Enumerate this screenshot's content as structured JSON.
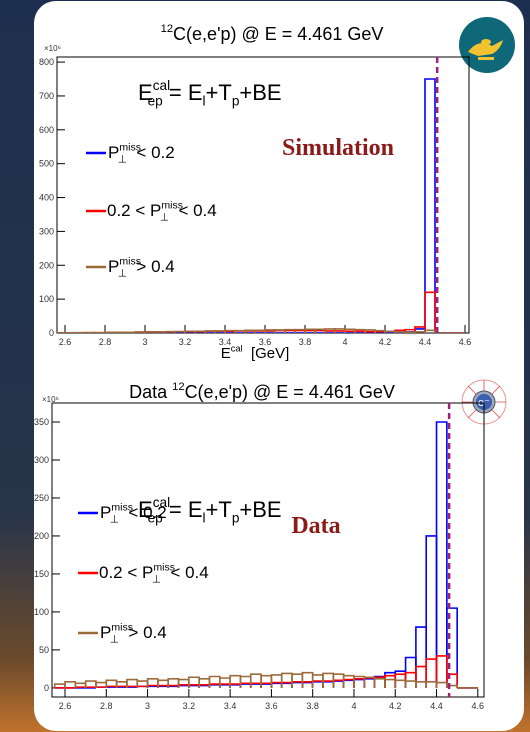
{
  "chart_data": [
    {
      "type": "histogram",
      "title": {
        "sup": "12",
        "base": "C(e,e'p) @ E = 4.461 GeV"
      },
      "y_multiplier": "×10⁶",
      "formula": {
        "base": "E",
        "sup": "cal",
        "sub": "ep",
        "post": " = E",
        "sub2": "l",
        "post2": "+T",
        "sub3": "p",
        "post3": "+BE"
      },
      "annotation": "Simulation",
      "xlabel": {
        "base": "E",
        "sup": "cal",
        "post": "  [GeV]"
      },
      "vline": 4.461,
      "xlim": [
        2.56,
        4.62
      ],
      "ylim": [
        0,
        815
      ],
      "xticks": [
        2.6,
        2.8,
        3,
        3.2,
        3.4,
        3.6,
        3.8,
        4,
        4.2,
        4.4,
        4.6
      ],
      "yticks": [
        0,
        100,
        200,
        300,
        400,
        500,
        600,
        700,
        800
      ],
      "bins": [
        2.55,
        2.6,
        2.65,
        2.7,
        2.75,
        2.8,
        2.85,
        2.9,
        2.95,
        3.0,
        3.05,
        3.1,
        3.15,
        3.2,
        3.25,
        3.3,
        3.35,
        3.4,
        3.45,
        3.5,
        3.55,
        3.6,
        3.65,
        3.7,
        3.75,
        3.8,
        3.85,
        3.9,
        3.95,
        4.0,
        4.05,
        4.1,
        4.15,
        4.2,
        4.25,
        4.3,
        4.35,
        4.4,
        4.45,
        4.5,
        4.55,
        4.6
      ],
      "series": [
        {
          "label": {
            "base": "P",
            "sup": "miss",
            "sub": "⊥",
            "post": "  < 0.2"
          },
          "color": "#0000ff",
          "values": [
            0,
            0,
            0,
            0,
            0,
            0,
            0,
            0,
            0,
            0,
            0,
            0,
            0,
            0,
            0,
            0,
            0,
            0,
            0,
            0,
            0,
            0,
            0,
            0,
            0,
            0,
            0,
            0,
            0,
            0,
            0,
            0,
            0,
            0,
            0,
            3,
            12,
            750,
            0,
            0,
            0
          ]
        },
        {
          "label": {
            "pre": "0.2 < ",
            "base": "P",
            "sup": "miss",
            "sub": "⊥",
            "post": "  < 0.4"
          },
          "color": "#ff0000",
          "values": [
            0,
            0,
            0,
            1,
            1,
            1,
            2,
            2,
            2,
            3,
            3,
            3,
            4,
            4,
            4,
            5,
            5,
            5,
            6,
            6,
            6,
            6,
            7,
            7,
            7,
            7,
            7,
            6,
            6,
            5,
            5,
            4,
            4,
            5,
            8,
            10,
            18,
            120,
            0,
            0,
            0
          ]
        },
        {
          "label": {
            "base": "P",
            "sup": "miss",
            "sub": "⊥",
            "post": "  > 0.4"
          },
          "color": "#9c6b3c",
          "values": [
            0,
            0,
            1,
            1,
            1,
            2,
            2,
            2,
            3,
            3,
            3,
            4,
            4,
            5,
            5,
            6,
            6,
            7,
            7,
            8,
            8,
            9,
            9,
            10,
            10,
            11,
            11,
            12,
            12,
            11,
            10,
            9,
            7,
            5,
            3,
            2,
            3,
            8,
            0,
            0,
            0
          ]
        }
      ]
    },
    {
      "type": "histogram",
      "title": {
        "pre": "Data ",
        "sup": "12",
        "base": "C(e,e'p) @ E = 4.461 GeV"
      },
      "y_multiplier": "×10⁶",
      "formula": {
        "base": "E",
        "sup": "cal",
        "sub": "ep",
        "post": " = E",
        "sub2": "l",
        "post2": "+T",
        "sub3": "p",
        "post3": "+BE"
      },
      "annotation": "Data",
      "vline": 4.461,
      "xlim": [
        2.537,
        4.63
      ],
      "ylim": [
        -12,
        375
      ],
      "xticks": [
        2.6,
        2.8,
        3,
        3.2,
        3.4,
        3.6,
        3.8,
        4,
        4.2,
        4.4,
        4.6
      ],
      "yticks": [
        0,
        50,
        100,
        150,
        200,
        250,
        300,
        350
      ],
      "bins": [
        2.55,
        2.6,
        2.65,
        2.7,
        2.75,
        2.8,
        2.85,
        2.9,
        2.95,
        3.0,
        3.05,
        3.1,
        3.15,
        3.2,
        3.25,
        3.3,
        3.35,
        3.4,
        3.45,
        3.5,
        3.55,
        3.6,
        3.65,
        3.7,
        3.75,
        3.8,
        3.85,
        3.9,
        3.95,
        4.0,
        4.05,
        4.1,
        4.15,
        4.2,
        4.25,
        4.3,
        4.35,
        4.4,
        4.45,
        4.5,
        4.55,
        4.6
      ],
      "series": [
        {
          "label": {
            "base": "P",
            "sup": "miss",
            "sub": "⊥",
            "post": "  < 0.2"
          },
          "color": "#0000ff",
          "values": [
            0,
            0,
            0,
            0,
            1,
            1,
            1,
            1,
            2,
            2,
            2,
            2,
            3,
            3,
            3,
            4,
            4,
            4,
            5,
            5,
            5,
            6,
            6,
            7,
            7,
            8,
            8,
            9,
            10,
            11,
            12,
            15,
            20,
            22,
            40,
            80,
            200,
            350,
            105,
            0,
            0
          ]
        },
        {
          "label": {
            "pre": "0.2 < ",
            "base": "P",
            "sup": "miss",
            "sub": "⊥",
            "post": "  < 0.4"
          },
          "color": "#ff0000",
          "values": [
            0,
            0,
            1,
            1,
            1,
            2,
            2,
            2,
            2,
            3,
            3,
            3,
            4,
            4,
            4,
            5,
            5,
            5,
            6,
            6,
            6,
            7,
            7,
            8,
            8,
            9,
            9,
            10,
            11,
            12,
            13,
            14,
            16,
            18,
            20,
            28,
            38,
            42,
            18,
            0,
            0
          ]
        },
        {
          "label": {
            "base": "P",
            "sup": "miss",
            "sub": "⊥",
            "post": "  > 0.4"
          },
          "color": "#9c6b3c",
          "values": [
            5,
            8,
            6,
            9,
            7,
            10,
            8,
            11,
            9,
            12,
            10,
            12,
            11,
            14,
            12,
            15,
            13,
            16,
            15,
            18,
            16,
            17,
            19,
            18,
            20,
            17,
            19,
            18,
            16,
            15,
            14,
            12,
            11,
            10,
            9,
            8,
            8,
            7,
            3,
            0,
            0
          ]
        }
      ]
    }
  ],
  "decorations": {
    "electron_label": "e⁻"
  }
}
